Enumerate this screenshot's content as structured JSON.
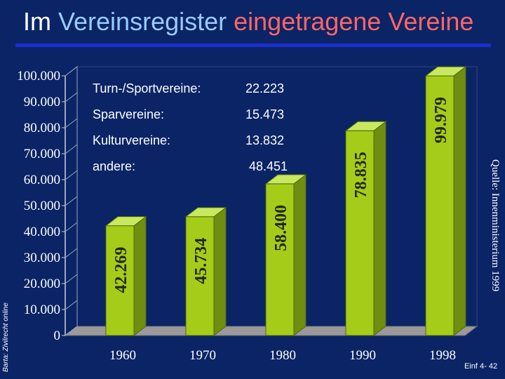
{
  "slide": {
    "title_part1": "Im ",
    "title_part2": "Vereinsregister",
    "title_part3": " eingetragene Vereine",
    "side_left": "Barta: Zivilrecht online",
    "side_right": "Quelle: Innenministerium 1999",
    "footer": "Einf 4- 42"
  },
  "colors": {
    "background": "#0a2466",
    "bar": "#a6cc1a",
    "bar_dark": "#6f8d10",
    "bar_top": "#c8e860",
    "plot_floor": "#9a9a9a"
  },
  "chart_data": {
    "type": "bar",
    "categories": [
      "1960",
      "1970",
      "1980",
      "1990",
      "1998"
    ],
    "values": [
      42269,
      45734,
      58400,
      78835,
      99979
    ],
    "data_labels": [
      "42.269",
      "45.734",
      "58.400",
      "78.835",
      "99.979"
    ],
    "yticks": [
      "0",
      "10.000",
      "20.000",
      "30.000",
      "40.000",
      "50.000",
      "60.000",
      "70.000",
      "80.000",
      "90.000",
      "100.000"
    ],
    "ylim": [
      0,
      100000
    ],
    "grid": false,
    "legend_placement": "top-left inside plot",
    "breakdown": [
      {
        "label": "Turn-/Sportvereine:",
        "value": "22.223"
      },
      {
        "label": "Sparvereine:",
        "value": "15.473"
      },
      {
        "label": "Kulturvereine:",
        "value": "13.832"
      },
      {
        "label": "andere:",
        "value": "48.451"
      }
    ]
  }
}
